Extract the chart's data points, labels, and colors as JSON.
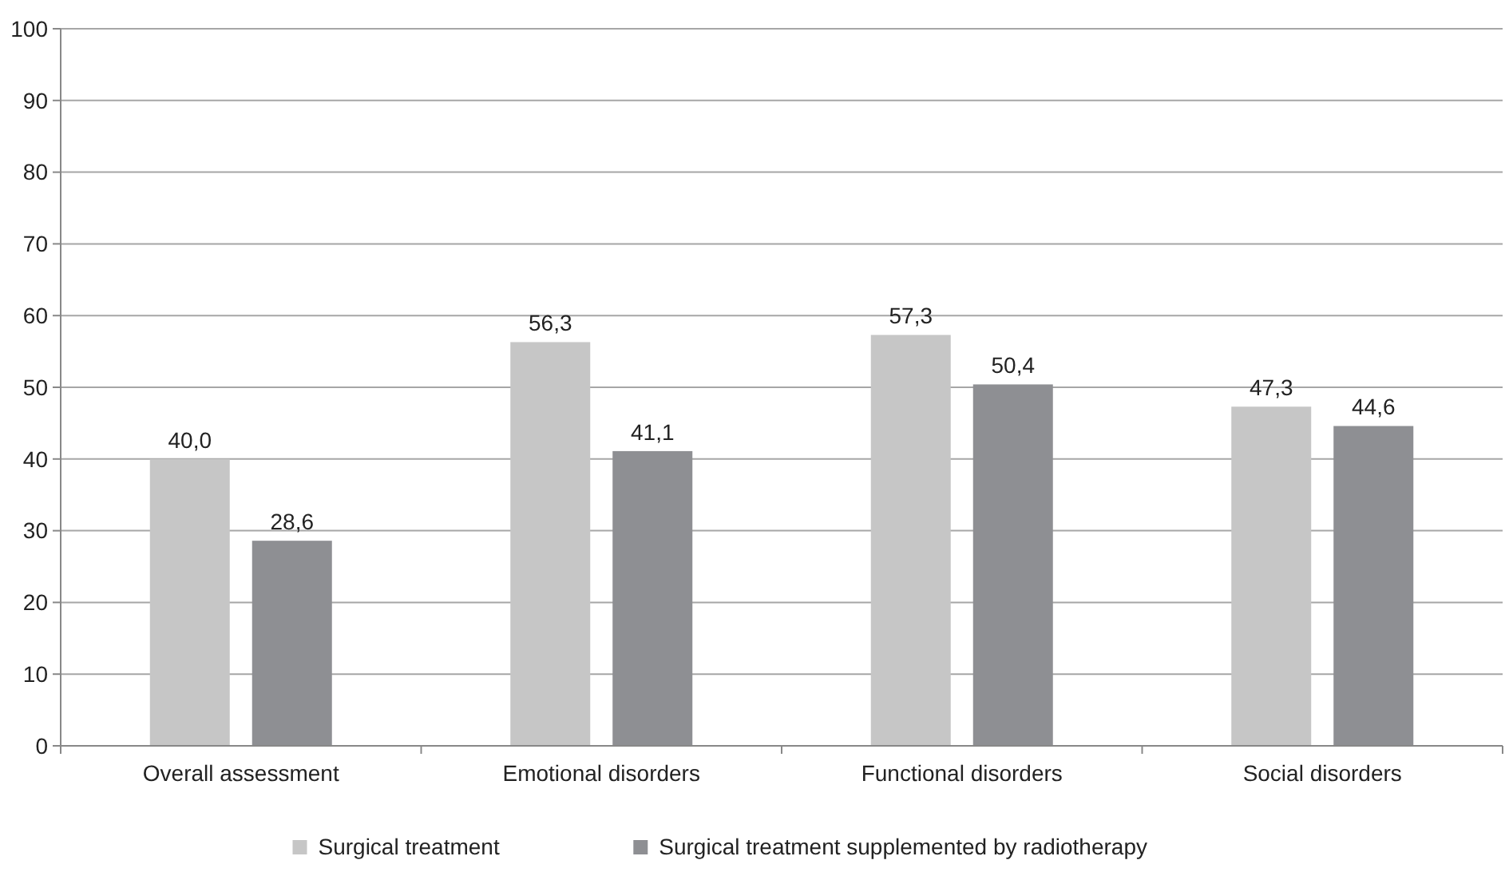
{
  "chart_data": {
    "type": "bar",
    "categories": [
      "Overall assessment",
      "Emotional disorders",
      "Functional disorders",
      "Social disorders"
    ],
    "series": [
      {
        "name": "Surgical treatment",
        "color": "#c6c6c6",
        "values": [
          40.0,
          56.3,
          57.3,
          47.3
        ],
        "value_labels": [
          "40,0",
          "56,3",
          "57,3",
          "47,3"
        ]
      },
      {
        "name": "Surgical treatment supplemented by radiotherapy",
        "color": "#8e8f93",
        "values": [
          28.6,
          41.1,
          50.4,
          44.6
        ],
        "value_labels": [
          "28,6",
          "41,1",
          "50,4",
          "44,6"
        ]
      }
    ],
    "ylim": [
      0,
      100
    ],
    "yticks": [
      0,
      10,
      20,
      30,
      40,
      50,
      60,
      70,
      80,
      90,
      100
    ],
    "grid": "y",
    "legend": "bottom"
  }
}
